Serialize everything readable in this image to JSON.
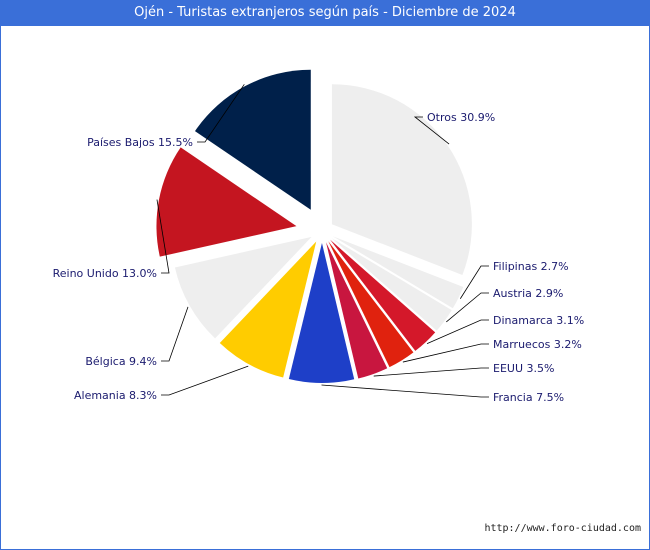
{
  "title": "Ojén - Turistas extranjeros según país - Diciembre de 2024",
  "footer": "http://www.foro-ciudad.com",
  "colors": {
    "title_bg": "#3a6fd8",
    "label_text": "#1a1a6e"
  },
  "chart_data": {
    "type": "pie",
    "title": "Ojén - Turistas extranjeros según país - Diciembre de 2024",
    "slices": [
      {
        "label": "Otros 30.9%",
        "category": "Otros",
        "value": 30.9,
        "color": "#eeeeee"
      },
      {
        "label": "Filipinas 2.7%",
        "category": "Filipinas",
        "value": 2.7,
        "color": "#eeeeee"
      },
      {
        "label": "Austria 2.9%",
        "category": "Austria",
        "value": 2.9,
        "color": "#eeeeee"
      },
      {
        "label": "Dinamarca 3.1%",
        "category": "Dinamarca",
        "value": 3.1,
        "color": "#d4182a"
      },
      {
        "label": "Marruecos 3.2%",
        "category": "Marruecos",
        "value": 3.2,
        "color": "#e0220e"
      },
      {
        "label": "EEUU 3.5%",
        "category": "EEUU",
        "value": 3.5,
        "color": "#c8163f"
      },
      {
        "label": "Francia 7.5%",
        "category": "Francia",
        "value": 7.5,
        "color": "#1e3fc8"
      },
      {
        "label": "Alemania 8.3%",
        "category": "Alemania",
        "value": 8.3,
        "color": "#ffcc00"
      },
      {
        "label": "Bélgica 9.4%",
        "category": "Bélgica",
        "value": 9.4,
        "color": "#eeeeee"
      },
      {
        "label": "Reino Unido 13.0%",
        "category": "Reino Unido",
        "value": 13.0,
        "color": "#c41520"
      },
      {
        "label": "Países Bajos 15.5%",
        "category": "Países Bajos",
        "value": 15.5,
        "color": "#00204a"
      }
    ]
  }
}
